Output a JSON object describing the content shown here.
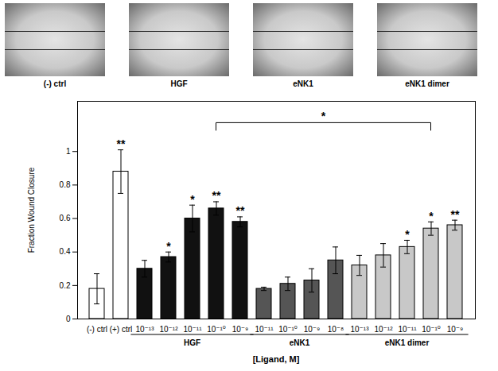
{
  "chart_data": {
    "type": "bar",
    "image_labels": [
      "(-) ctrl",
      "HGF",
      "eNK1",
      "eNK1 dimer"
    ],
    "ylabel": "Fraction Wound Closure",
    "xlabel": "[Ligand, M]",
    "categories": [
      "(-) ctrl",
      "(+) ctrl",
      "10⁻¹³",
      "10⁻¹²",
      "10⁻¹¹",
      "10⁻¹⁰",
      "10⁻⁹",
      "10⁻¹¹",
      "10⁻¹⁰",
      "10⁻⁹",
      "10⁻⁸",
      "10⁻¹³",
      "10⁻¹²",
      "10⁻¹¹",
      "10⁻¹⁰",
      "10⁻⁹"
    ],
    "values": [
      0.18,
      0.88,
      0.3,
      0.37,
      0.6,
      0.66,
      0.58,
      0.18,
      0.21,
      0.23,
      0.35,
      0.32,
      0.38,
      0.43,
      0.54,
      0.56
    ],
    "errors": [
      0.09,
      0.13,
      0.05,
      0.03,
      0.08,
      0.04,
      0.03,
      0.01,
      0.04,
      0.07,
      0.08,
      0.06,
      0.07,
      0.04,
      0.04,
      0.03
    ],
    "significance": [
      null,
      "**",
      null,
      "*",
      "*",
      "**",
      "**",
      null,
      null,
      null,
      null,
      null,
      null,
      "*",
      "*",
      "**"
    ],
    "colors": [
      "#ffffff",
      "#ffffff",
      "#111111",
      "#111111",
      "#111111",
      "#111111",
      "#111111",
      "#555555",
      "#555555",
      "#555555",
      "#555555",
      "#c8c8c8",
      "#c8c8c8",
      "#c8c8c8",
      "#c8c8c8",
      "#c8c8c8"
    ],
    "groups": [
      {
        "label": "HGF",
        "start": 2,
        "end": 6
      },
      {
        "label": "eNK1",
        "start": 7,
        "end": 10
      },
      {
        "label": "eNK1 dimer",
        "start": 11,
        "end": 15
      }
    ],
    "bracket": {
      "from": 5,
      "to": 14,
      "label": "*"
    },
    "ylim": [
      0,
      1.3
    ],
    "yticks": [
      0,
      0.2,
      0.4,
      0.6,
      0.8,
      1
    ]
  }
}
